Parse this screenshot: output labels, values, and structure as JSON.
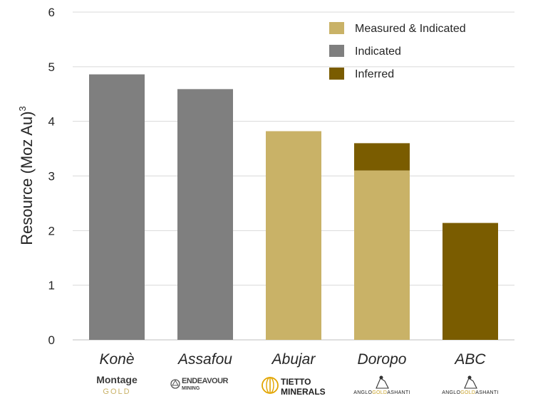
{
  "chart_data": {
    "type": "bar",
    "stacked": true,
    "categories": [
      "Konè",
      "Assafou",
      "Abujar",
      "Doropo",
      "ABC"
    ],
    "series": [
      {
        "name": "Measured & Indicated",
        "color": "#c9b267",
        "values": [
          0,
          0,
          3.82,
          3.1,
          0
        ]
      },
      {
        "name": "Indicated",
        "color": "#7f7f7f",
        "values": [
          4.86,
          4.59,
          0,
          0,
          0
        ]
      },
      {
        "name": "Inferred",
        "color": "#7a5c00",
        "values": [
          0,
          0,
          0,
          0.5,
          2.14
        ]
      }
    ],
    "ylabel": "Resource (Moz Au)",
    "ylabel_superscript": "3",
    "ylim": [
      0,
      6
    ],
    "yticks": [
      "0",
      "1",
      "2",
      "3",
      "4",
      "5",
      "6"
    ],
    "grid": true,
    "legend_position": "top-right",
    "logos": [
      {
        "text": "Montage",
        "subtext": "GOLD",
        "icon": "montage-gold-logo"
      },
      {
        "text": "ENDEAVOUR",
        "subtext": "MINING",
        "icon": "endeavour-mining-logo"
      },
      {
        "text": "TIETTO",
        "subtext": "MINERALS",
        "icon": "tietto-minerals-logo"
      },
      {
        "text": "ANGLOGOLDASHANTI",
        "icon": "anglogold-ashanti-logo"
      },
      {
        "text": "ANGLOGOLDASHANTI",
        "icon": "anglogold-ashanti-logo"
      }
    ]
  }
}
